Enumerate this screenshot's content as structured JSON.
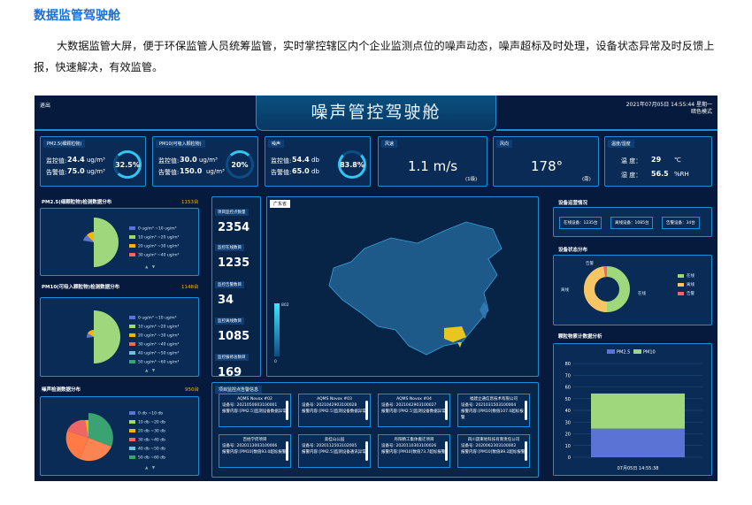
{
  "page": {
    "title": "数据监管驾驶舱",
    "intro": "大数据监管大屏，便于环保监管人员统筹监管，实时掌控辖区内个企业监测点位的噪声动态，噪声超标及时处理，设备状态异常及时反馈上报，快速解决，有效监管。"
  },
  "screen": {
    "title": "噪声管控驾驶舱",
    "exit": "退出",
    "datetime": "2021年07月05日 14:55:44 星期一",
    "mode": "暗色模式"
  },
  "top_cards": [
    {
      "title": "PM2.5(细颗粒物)",
      "line1_label": "监控值:",
      "line1_value": "24.4",
      "line1_unit": "ug/m³",
      "line2_label": "告警值:",
      "line2_value": "75.0",
      "line2_unit": "ug/m³",
      "percent": "32.5%"
    },
    {
      "title": "PM10(可吸入颗粒物)",
      "line1_label": "监控值:",
      "line1_value": "30.0",
      "line1_unit": "ug/m³",
      "line2_label": "告警值:",
      "line2_value": "150.0",
      "line2_unit": "ug/m³",
      "percent": "20%"
    },
    {
      "title": "噪声",
      "line1_label": "监控值:",
      "line1_value": "54.4",
      "line1_unit": "db",
      "line2_label": "告警值:",
      "line2_value": "65.0",
      "line2_unit": "db",
      "percent": "83.8%"
    }
  ],
  "wind": {
    "title": "风速",
    "value": "1.1 m/s",
    "level": "(1级)"
  },
  "direction": {
    "title": "风向",
    "value": "178°",
    "dir": "(南)"
  },
  "climate": {
    "title": "温度/湿度",
    "temp_label": "温 度：",
    "temp_value": "29",
    "temp_unit": "℃",
    "hum_label": "湿 度：",
    "hum_value": "56.5",
    "hum_unit": "%RH"
  },
  "left_panels": [
    {
      "title": "PM2.5(细颗粒物)检测数据分布",
      "count": "1153台",
      "legend": [
        "0 ug/m³ ~10 ug/m³",
        "10 ug/m³ ~20 ug/m³",
        "20 ug/m³ ~30 ug/m³",
        "30 ug/m³ ~40 ug/m³"
      ]
    },
    {
      "title": "PM10(可吸入颗粒物)检测数据分布",
      "count": "1148台",
      "legend": [
        "0 ug/m³ ~10 ug/m³",
        "10 ug/m³ ~20 ug/m³",
        "20 ug/m³ ~30 ug/m³",
        "30 ug/m³ ~40 ug/m³",
        "40 ug/m³ ~50 ug/m³",
        "50 ug/m³ ~60 ug/m³"
      ]
    },
    {
      "title": "噪声检测数据分布",
      "count": "950台",
      "legend": [
        "0 db ~10 db",
        "10 db ~20 db",
        "20 db ~30 db",
        "30 db ~40 db",
        "40 db ~50 db",
        "50 db ~60 db"
      ]
    }
  ],
  "stats": [
    {
      "label": "项目监控点数量",
      "value": "2354"
    },
    {
      "label": "监控在线数目",
      "value": "1235"
    },
    {
      "label": "监控告警数目",
      "value": "34"
    },
    {
      "label": "监控离线数目",
      "value": "1085"
    },
    {
      "label": "监控报修总数目",
      "value": "169"
    }
  ],
  "map": {
    "region": "广东省",
    "scale_max": "802",
    "scale_min": "0"
  },
  "alarms_title": "项目监控点告警信息",
  "alarms": [
    {
      "name": "AQMS Novox #02",
      "id": "2021050603100001",
      "content": "报警内容:[PM2.5]监测设备数据异常"
    },
    {
      "name": "AQMS Novox #03",
      "id": "2021042903100028",
      "content": "报警内容:[PM2.5]监测设备数据异常"
    },
    {
      "name": "AQMS Novox #04",
      "id": "2021042903100027",
      "content": "报警内容:[PM2.5]监测设备数据异常"
    },
    {
      "name": "福建立通信息技术有限公司",
      "id": "2021031503100004",
      "content": "报警内容:[PM10]数值107.0超标报警"
    },
    {
      "name": "百姓学府项目",
      "id": "2020113003100006",
      "content": "报警内容:[PM10]数值93.0超标报警"
    },
    {
      "name": "高桂山公园",
      "id": "2020112503102005",
      "content": "报警内容:[PM2.5]监测设备通讯异常"
    },
    {
      "name": "丹阳精工集体搬迁项目",
      "id": "2020110303100026",
      "content": "报警内容:[PM10]数值73.7超标报警"
    },
    {
      "name": "四川晟東地科技有限责任公司",
      "id": "2020062303100002",
      "content": "报警内容:[PM10]数值89.2超标报警"
    }
  ],
  "alarm_id_label": "设备号:",
  "device_status": {
    "title": "设备运营情况",
    "online": "在线设备：1235台",
    "offline": "离线设备：1085台",
    "alarm": "告警设备：34台"
  },
  "device_dist": {
    "title": "设备状态分布",
    "labels": [
      "告警",
      "离线",
      "在线"
    ],
    "legend": [
      "在线",
      "离线",
      "告警"
    ]
  },
  "particles": {
    "title": "颗粒物累计数据分析",
    "legend": [
      "PM2.5",
      "PM10"
    ],
    "xlabel": "07月05日 14:55:38"
  },
  "chart_data": {
    "type": "bar",
    "stacked": true,
    "categories": [
      "07月05日 14:55:38"
    ],
    "series": [
      {
        "name": "PM2.5",
        "values": [
          24.4
        ]
      },
      {
        "name": "PM10",
        "values": [
          30.0
        ]
      }
    ],
    "ylim": [
      0,
      80
    ],
    "yticks": [
      0,
      10,
      20,
      30,
      40,
      50,
      60,
      70,
      80
    ],
    "colors": {
      "PM2.5": "#5b73d4",
      "PM10": "#9fd77c"
    }
  }
}
